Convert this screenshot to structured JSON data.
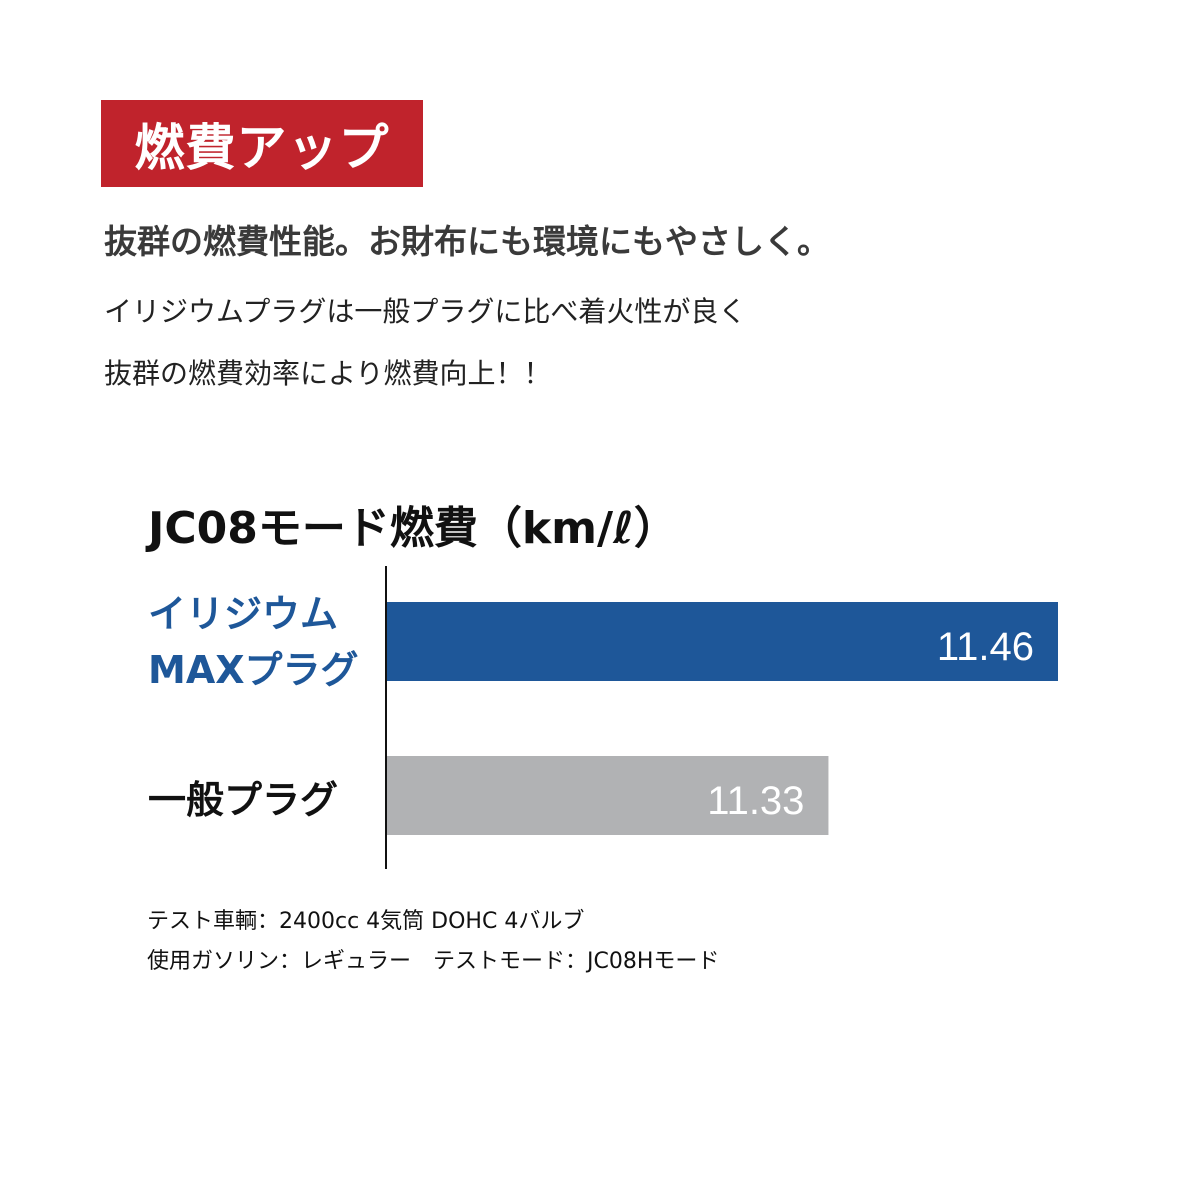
{
  "badge": "燃費アップ",
  "headline": "抜群の燃費性能。お財布にも環境にもやさしく。",
  "body": [
    "イリジウムプラグは一般プラグに比べ着火性が良く",
    "抜群の燃費効率により燃費向上！！"
  ],
  "colors": {
    "badge": "#c0232c",
    "iridium": "#1e5799",
    "standard": "#b1b2b4"
  },
  "chart_data": {
    "type": "bar",
    "orientation": "horizontal",
    "title": "JC08モード燃費（km/ℓ）",
    "categories": [
      [
        "イリジウム",
        "MAXプラグ"
      ],
      [
        "一般プラグ"
      ]
    ],
    "values": [
      11.46,
      11.33
    ],
    "data_labels": [
      "11.46",
      "11.33"
    ],
    "xlim": [
      11.08,
      11.46
    ],
    "grid": false
  },
  "notes": [
    "テスト車輌：2400cc 4気筒 DOHC 4バルブ",
    "使用ガソリン：レギュラー　テストモード：JC08Hモード"
  ]
}
